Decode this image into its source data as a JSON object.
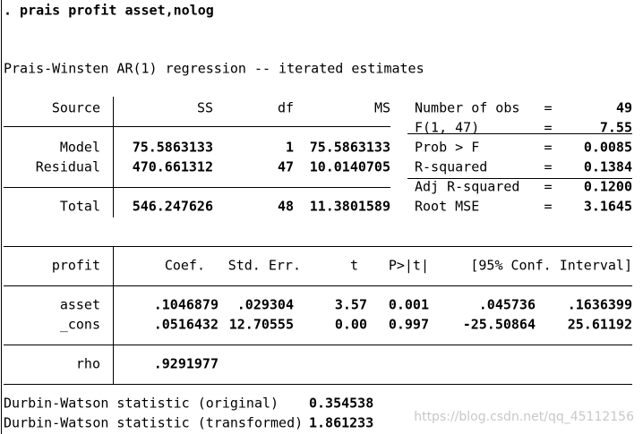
{
  "command": ". prais profit asset,nolog",
  "title": "Prais-Winsten AR(1) regression -- iterated estimates",
  "anova": {
    "headers": [
      "Source",
      "SS",
      "df",
      "MS"
    ],
    "rows": [
      [
        "Model",
        "75.5863133",
        "1",
        "75.5863133"
      ],
      [
        "Residual",
        "470.661312",
        "47",
        "10.0140705"
      ],
      [
        "Total",
        "546.247626",
        "48",
        "11.3801589"
      ]
    ]
  },
  "stats": [
    {
      "label": "Number of obs",
      "sep": "=",
      "value": "49"
    },
    {
      "label": "F(1, 47)",
      "sep": "=",
      "value": "7.55"
    },
    {
      "label": "Prob > F",
      "sep": "=",
      "value": "0.0085"
    },
    {
      "label": "R-squared",
      "sep": "=",
      "value": "0.1384"
    },
    {
      "label": "Adj R-squared",
      "sep": "=",
      "value": "0.1200"
    },
    {
      "label": "Root MSE",
      "sep": "=",
      "value": "3.1645"
    }
  ],
  "coef": {
    "headers": [
      "profit",
      "Coef.",
      "Std. Err.",
      "t",
      "P>|t|",
      "[95% Conf. Interval]"
    ],
    "rows": [
      [
        "asset",
        ".1046879",
        ".029304",
        "3.57",
        "0.001",
        ".045736",
        ".1636399"
      ],
      [
        "_cons",
        ".0516432",
        "12.70555",
        "0.00",
        "0.997",
        "-25.50864",
        "25.61192"
      ]
    ]
  },
  "rho": {
    "label": "rho",
    "value": ".9291977"
  },
  "durbin_watson": [
    {
      "label": "Durbin-Watson statistic (original)",
      "value": "0.354538"
    },
    {
      "label": "Durbin-Watson statistic (transformed)",
      "value": "1.861233"
    }
  ],
  "watermark": "https://blog.csdn.net/qq_45112156"
}
